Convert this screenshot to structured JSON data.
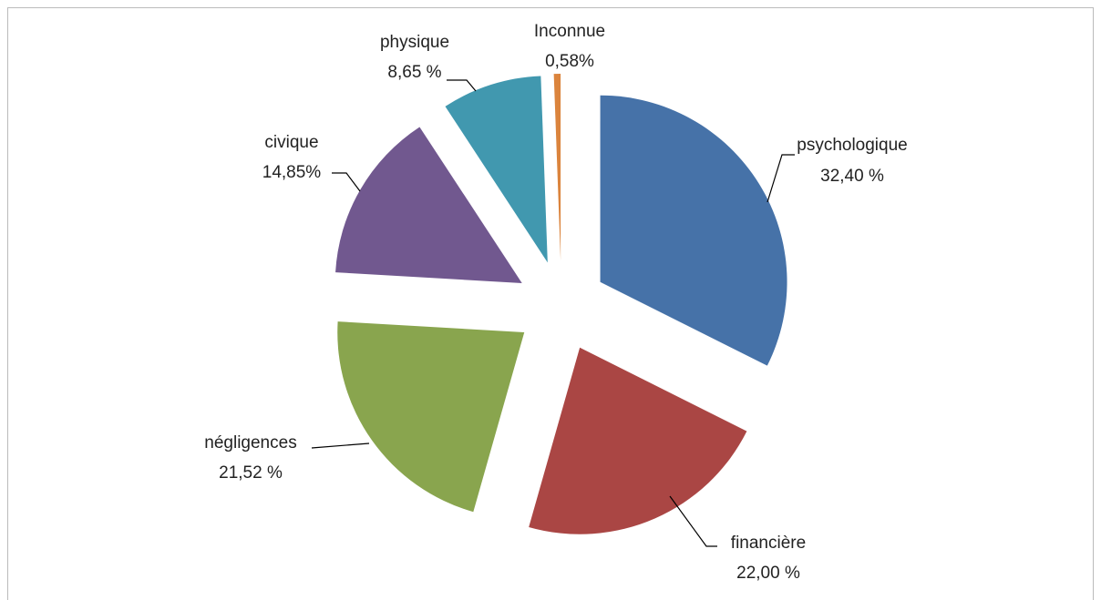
{
  "chart_data": {
    "type": "pie",
    "categories": [
      "psychologique",
      "financière",
      "négligences",
      "civique",
      "physique",
      "Inconnue"
    ],
    "values": [
      32.4,
      22.0,
      21.52,
      14.85,
      8.65,
      0.58
    ],
    "value_labels": [
      "32,40 %",
      "22,00 %",
      "21,52 %",
      "14,85%",
      "8,65 %",
      "0,58%"
    ],
    "colors": [
      "#4672a8",
      "#aa4644",
      "#89a54e",
      "#71588f",
      "#4198af",
      "#db843d"
    ]
  }
}
